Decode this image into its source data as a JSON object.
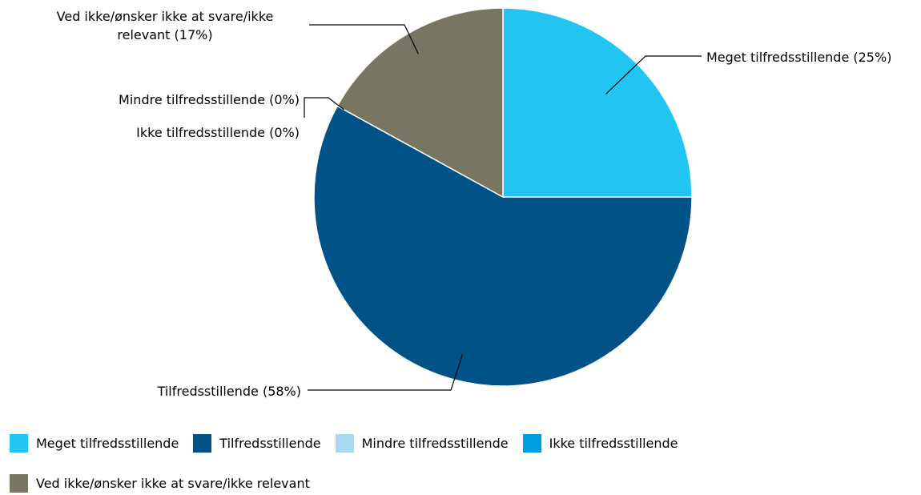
{
  "chart_data": {
    "type": "pie",
    "slices": [
      {
        "label": "Meget tilfredsstillende",
        "value": 25,
        "color": "#22C4F2",
        "callout": "Meget tilfredsstillende (25%)"
      },
      {
        "label": "Tilfredsstillende",
        "value": 58,
        "color": "#005287",
        "callout": "Tilfredsstillende (58%)"
      },
      {
        "label": "Mindre tilfredsstillende",
        "value": 0,
        "color": "#A9D8F5",
        "callout": "Mindre tilfredsstillende (0%)"
      },
      {
        "label": "Ikke tilfredsstillende",
        "value": 0,
        "color": "#009EE0",
        "callout": "Ikke tilfredsstillende (0%)"
      },
      {
        "label": "Ved ikke/ønsker ikke at svare/ikke relevant",
        "value": 17,
        "color": "#787562",
        "callout": "Ved ikke/ønsker ikke at svare/ikke relevant (17%)"
      }
    ],
    "callout_lines": {
      "ved_ikke": [
        "Ved ikke/ønsker ikke at svare/ikke",
        "relevant (17%)"
      ]
    },
    "legend": {
      "position": "bottom",
      "items": [
        "Meget tilfredsstillende",
        "Tilfredsstillende",
        "Mindre tilfredsstillende",
        "Ikke tilfredsstillende",
        "Ved ikke/ønsker ikke at svare/ikke relevant"
      ]
    }
  }
}
